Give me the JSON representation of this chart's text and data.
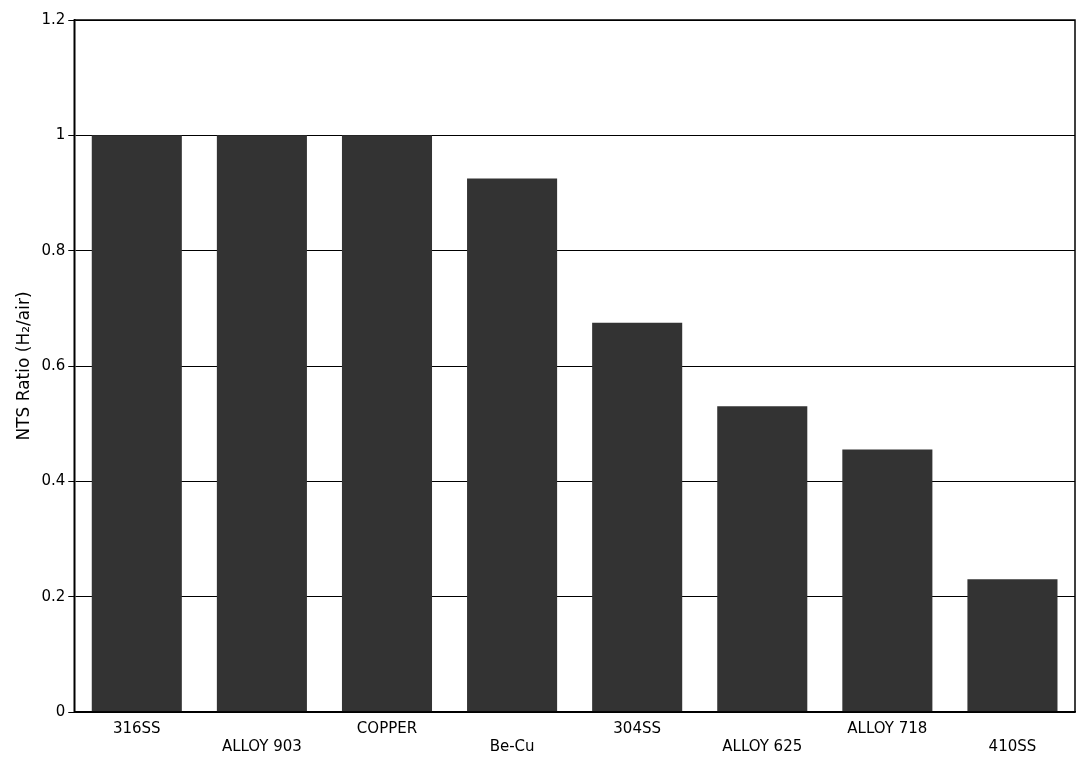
{
  "chart_data": {
    "type": "bar",
    "ylabel": "NTS Ratio (H₂/air)",
    "categories": [
      "316SS",
      "ALLOY 903",
      "COPPER",
      "Be-Cu",
      "304SS",
      "ALLOY 625",
      "ALLOY 718",
      "410SS"
    ],
    "values": [
      1,
      1,
      1,
      0.925,
      0.675,
      0.53,
      0.455,
      0.23
    ],
    "color": "#333333",
    "ylim": [
      0,
      1.2
    ],
    "yticks": [
      0,
      0.2,
      0.4,
      0.6,
      0.8,
      1,
      1.2
    ],
    "grid": "y",
    "legend": false
  }
}
